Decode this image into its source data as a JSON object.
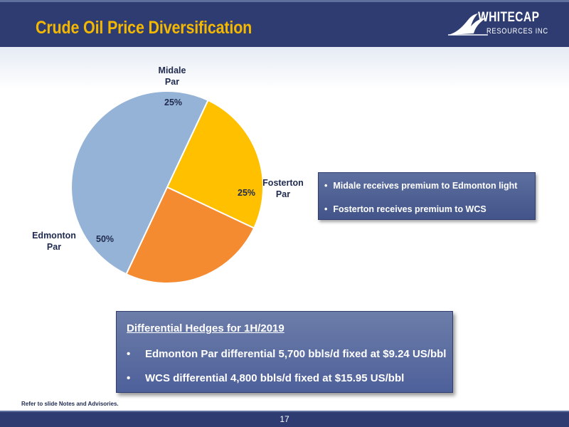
{
  "header": {
    "title": "Crude Oil Price Diversification",
    "logo": {
      "line1": "WHITECAP",
      "line2": "RESOURCES INC"
    }
  },
  "chart_data": {
    "type": "pie",
    "slices": [
      {
        "label_line1": "Midale",
        "label_line2": "Par",
        "value": 25,
        "pct_label": "25%",
        "color": "#ffc000"
      },
      {
        "label_line1": "Fosterton",
        "label_line2": "Par",
        "value": 25,
        "pct_label": "25%",
        "color": "#f48b30"
      },
      {
        "label_line1": "Edmonton",
        "label_line2": "Par",
        "value": 50,
        "pct_label": "50%",
        "color": "#95b3d7"
      }
    ]
  },
  "notes_box": {
    "items": [
      "Midale receives premium to Edmonton light",
      "Fosterton receives premium to WCS"
    ]
  },
  "hedges_box": {
    "title": "Differential Hedges for 1H/2019",
    "bullet": "•",
    "items": [
      "Edmonton Par differential 5,700 bbls/d fixed at $9.24 US/bbl",
      "WCS differential 4,800 bbls/d fixed at $15.95 US/bbl"
    ]
  },
  "footnote": "Refer to slide Notes and Advisories.",
  "footer": {
    "page_number": "17"
  }
}
